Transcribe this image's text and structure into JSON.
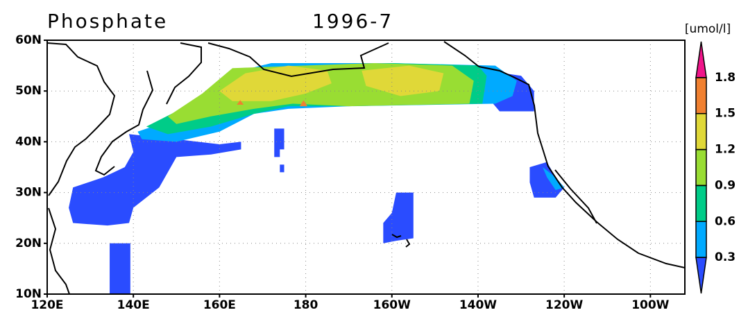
{
  "chart_data": {
    "type": "map",
    "title": "Phosphate",
    "subtitle": "1996-7",
    "unit_label": "[umol/l]",
    "xlim": [
      120,
      268
    ],
    "ylim": [
      10,
      60
    ],
    "xticks": [
      {
        "value": 120,
        "label": "120E"
      },
      {
        "value": 140,
        "label": "140E"
      },
      {
        "value": 160,
        "label": "160E"
      },
      180,
      {
        "value": 200,
        "label": "160W"
      },
      {
        "value": 220,
        "label": "140W"
      },
      {
        "value": 240,
        "label": "120W"
      },
      {
        "value": 260,
        "label": "100W"
      }
    ],
    "yticks": [
      {
        "value": 10,
        "label": "10N"
      },
      {
        "value": 20,
        "label": "20N"
      },
      {
        "value": 30,
        "label": "30N"
      },
      {
        "value": 40,
        "label": "40N"
      },
      {
        "value": 50,
        "label": "50N"
      },
      {
        "value": 60,
        "label": "60N"
      }
    ],
    "grid": true,
    "colorbar": {
      "levels": [
        0.3,
        0.6,
        0.9,
        1.2,
        1.5,
        1.8
      ],
      "colors": [
        "#2a4cff",
        "#00aaff",
        "#00cc88",
        "#99dd33",
        "#e0d838",
        "#f08030",
        "#f0158a"
      ]
    },
    "regions": [
      {
        "color": "#2a4cff",
        "polygon": [
          [
            139,
            41.5
          ],
          [
            150,
            40.5
          ],
          [
            160,
            39.5
          ],
          [
            165,
            40
          ],
          [
            165,
            38.5
          ],
          [
            158,
            37.5
          ],
          [
            150,
            37
          ],
          [
            148,
            34
          ],
          [
            146,
            31
          ],
          [
            140,
            27
          ],
          [
            139,
            24
          ],
          [
            134,
            23.5
          ],
          [
            126,
            24
          ],
          [
            125,
            27
          ],
          [
            126,
            31
          ],
          [
            133,
            33
          ],
          [
            138,
            35
          ],
          [
            140,
            38
          ]
        ]
      },
      {
        "color": "#2a4cff",
        "polygon": [
          [
            134.5,
            20
          ],
          [
            139.3,
            20
          ],
          [
            139.3,
            10
          ],
          [
            134.5,
            10
          ]
        ]
      },
      {
        "color": "#2a4cff",
        "polygon": [
          [
            201,
            30
          ],
          [
            205,
            30
          ],
          [
            205,
            21
          ],
          [
            201,
            20.5
          ],
          [
            198,
            20
          ],
          [
            198,
            24
          ],
          [
            200,
            26
          ]
        ]
      },
      {
        "color": "#2a4cff",
        "polygon": [
          [
            172.7,
            42.6
          ],
          [
            175,
            42.6
          ],
          [
            175,
            38.5
          ],
          [
            174,
            38.5
          ],
          [
            174,
            37
          ],
          [
            172.7,
            37
          ]
        ]
      },
      {
        "color": "#2a4cff",
        "polygon": [
          [
            174,
            35.5
          ],
          [
            175,
            35.5
          ],
          [
            175,
            34
          ],
          [
            174,
            34
          ]
        ]
      },
      {
        "color": "#2a4cff",
        "polygon": [
          [
            232,
            35
          ],
          [
            236,
            36
          ],
          [
            238,
            33
          ],
          [
            240,
            31
          ],
          [
            238,
            29
          ],
          [
            233,
            29
          ],
          [
            232,
            32
          ]
        ]
      },
      {
        "color": "#2a4cff",
        "polygon": [
          [
            222,
            54
          ],
          [
            230,
            53
          ],
          [
            233,
            50
          ],
          [
            233,
            46
          ],
          [
            225,
            46
          ],
          [
            222,
            49
          ]
        ]
      },
      {
        "color": "#00aaff",
        "polygon": [
          [
            141,
            42
          ],
          [
            148,
            44
          ],
          [
            155,
            48
          ],
          [
            160,
            50
          ],
          [
            165,
            54
          ],
          [
            172,
            55.5
          ],
          [
            200,
            55.5
          ],
          [
            224,
            55
          ],
          [
            229,
            52
          ],
          [
            228,
            49
          ],
          [
            224,
            47.5
          ],
          [
            190,
            47
          ],
          [
            176,
            46.5
          ],
          [
            168,
            45.5
          ],
          [
            160,
            42
          ],
          [
            150,
            40
          ],
          [
            142,
            40.5
          ]
        ]
      },
      {
        "color": "#00aaff",
        "polygon": [
          [
            235,
            35
          ],
          [
            238,
            33
          ],
          [
            240,
            31
          ],
          [
            238,
            30.5
          ],
          [
            236,
            33
          ]
        ]
      },
      {
        "color": "#00cc88",
        "polygon": [
          [
            143,
            43
          ],
          [
            150,
            46
          ],
          [
            158,
            50
          ],
          [
            164,
            54.5
          ],
          [
            200,
            55.5
          ],
          [
            220,
            55
          ],
          [
            222,
            53
          ],
          [
            221,
            47.5
          ],
          [
            190,
            47
          ],
          [
            176,
            47
          ],
          [
            168,
            45.5
          ],
          [
            158,
            43
          ],
          [
            148,
            41.5
          ]
        ]
      },
      {
        "color": "#99dd33",
        "polygon": [
          [
            148,
            45
          ],
          [
            156,
            49.5
          ],
          [
            163,
            54.5
          ],
          [
            196,
            55.5
          ],
          [
            214,
            55
          ],
          [
            219,
            52
          ],
          [
            218,
            47.5
          ],
          [
            190,
            47
          ],
          [
            177,
            47.5
          ],
          [
            168,
            46.5
          ],
          [
            158,
            45
          ],
          [
            150,
            43.5
          ]
        ]
      },
      {
        "color": "#e0d838",
        "polygon": [
          [
            160,
            50
          ],
          [
            166,
            53.5
          ],
          [
            176,
            55
          ],
          [
            185,
            54
          ],
          [
            186,
            51.5
          ],
          [
            180,
            49.5
          ],
          [
            172,
            48
          ],
          [
            163,
            48
          ]
        ]
      },
      {
        "color": "#e0d838",
        "polygon": [
          [
            193,
            54
          ],
          [
            204,
            55
          ],
          [
            212,
            53.5
          ],
          [
            211,
            50
          ],
          [
            202,
            49
          ],
          [
            194,
            51
          ]
        ]
      },
      {
        "color": "#f08030",
        "polygon": [
          [
            178.6,
            47
          ],
          [
            179.5,
            48.2
          ],
          [
            180.4,
            47
          ]
        ]
      },
      {
        "color": "#f08030",
        "polygon": [
          [
            164,
            47.3
          ],
          [
            164.8,
            48.2
          ],
          [
            165.6,
            47.3
          ]
        ]
      }
    ]
  }
}
